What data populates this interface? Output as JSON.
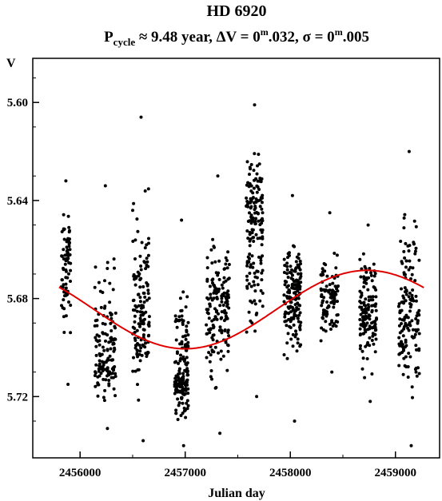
{
  "chart_data": {
    "type": "scatter",
    "title": "HD 6920",
    "subtitle": "Pcycle ≈ 9.48 year, ΔV = 0m.032, σ = 0m.005",
    "xlabel": "Julian day",
    "ylabel": "V",
    "xlim": [
      2455550,
      2459420
    ],
    "ylim": [
      5.745,
      5.582
    ],
    "y_inverted": true,
    "x_ticks": [
      2456000,
      2457000,
      2458000,
      2459000
    ],
    "x_tick_labels": [
      "2456000",
      "2457000",
      "2458000",
      "2459000"
    ],
    "y_ticks": [
      5.6,
      5.64,
      5.68,
      5.72
    ],
    "y_tick_labels": [
      "5.60",
      "5.64",
      "5.68",
      "5.72"
    ],
    "grid": false,
    "colors": {
      "points": "#000000",
      "fit": "#e00000"
    },
    "series": [
      {
        "kind": "points",
        "seasons": [
          {
            "x_range": [
              2455820,
              2455910
            ],
            "y_top": 5.632,
            "y_bottom": 5.715,
            "y_center": 5.665,
            "n": 75
          },
          {
            "x_range": [
              2456140,
              2456340
            ],
            "y_top": 5.634,
            "y_bottom": 5.733,
            "y_center": 5.705,
            "n": 140
          },
          {
            "x_range": [
              2456500,
              2456660
            ],
            "y_top": 5.606,
            "y_bottom": 5.738,
            "y_center": 5.688,
            "n": 140
          },
          {
            "x_range": [
              2456900,
              2457030
            ],
            "y_top": 5.648,
            "y_bottom": 5.74,
            "y_center": 5.712,
            "n": 165
          },
          {
            "x_range": [
              2457200,
              2457420
            ],
            "y_top": 5.63,
            "y_bottom": 5.735,
            "y_center": 5.685,
            "n": 160
          },
          {
            "x_range": [
              2457580,
              2457740
            ],
            "y_top": 5.601,
            "y_bottom": 5.72,
            "y_center": 5.65,
            "n": 160
          },
          {
            "x_range": [
              2457940,
              2458100
            ],
            "y_top": 5.638,
            "y_bottom": 5.73,
            "y_center": 5.68,
            "n": 160
          },
          {
            "x_range": [
              2458290,
              2458460
            ],
            "y_top": 5.645,
            "y_bottom": 5.71,
            "y_center": 5.68,
            "n": 95
          },
          {
            "x_range": [
              2458660,
              2458820
            ],
            "y_top": 5.65,
            "y_bottom": 5.722,
            "y_center": 5.685,
            "n": 140
          },
          {
            "x_range": [
              2459030,
              2459230
            ],
            "y_top": 5.62,
            "y_bottom": 5.74,
            "y_center": 5.69,
            "n": 150
          }
        ]
      },
      {
        "kind": "fit",
        "model": "sinusoid",
        "period_days": 3462,
        "mean": 5.6845,
        "amplitude": 0.016,
        "min_brightness_jd": 2457000,
        "x_range": [
          2455800,
          2459270
        ]
      }
    ]
  }
}
